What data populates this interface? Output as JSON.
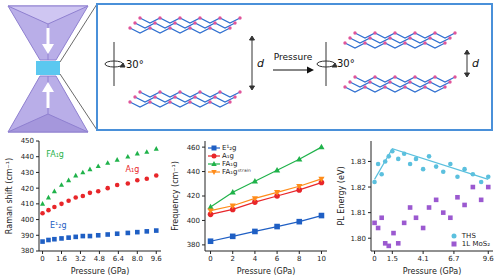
{
  "chart_data": [
    {
      "type": "scatter",
      "x_label": "Pressure (GPa)",
      "y_label": "Raman shift (cm⁻¹)",
      "x": [
        0,
        0.5,
        1.0,
        1.6,
        2.2,
        2.8,
        3.4,
        4.0,
        4.7,
        5.5,
        6.3,
        7.2,
        8.0,
        8.8,
        9.6
      ],
      "series": [
        {
          "name": "E¹₂g",
          "color": "#1f5fc4",
          "marker": "square",
          "values": [
            386,
            387,
            387.5,
            388,
            388.5,
            389,
            389.5,
            389.5,
            390,
            390.5,
            391,
            391.5,
            392,
            392.5,
            393
          ]
        },
        {
          "name": "A₁g",
          "color": "#e8262a",
          "marker": "circle",
          "values": [
            404,
            406,
            408,
            410,
            412,
            414,
            415,
            417,
            418,
            420,
            422,
            423,
            425,
            426,
            428
          ]
        },
        {
          "name": "FA₁g",
          "color": "#1fb24a",
          "marker": "triangle",
          "values": [
            410,
            414,
            418,
            422,
            425,
            428,
            430,
            432,
            434,
            436,
            438,
            440,
            442,
            443,
            445
          ]
        }
      ],
      "xlim": [
        -0.3,
        10
      ],
      "xticks": [
        0,
        1.6,
        3.2,
        4.8,
        6.4,
        {
          "value": 8,
          "label": "8.0"
        },
        9.6
      ],
      "ylim": [
        380,
        450
      ],
      "yticks": [
        380,
        390,
        400,
        410,
        420,
        430,
        440,
        450
      ],
      "grid": false
    },
    {
      "type": "line",
      "x_label": "Pressure (GPa)",
      "y_label": "Frequency (cm⁻¹)",
      "x": [
        0,
        2,
        4,
        6,
        8,
        10
      ],
      "series": [
        {
          "name": "E¹₂g",
          "color": "#1f5fc4",
          "marker": "square",
          "values": [
            383,
            387,
            391,
            395,
            399,
            404
          ]
        },
        {
          "name": "A₁g",
          "color": "#e8262a",
          "marker": "circle",
          "values": [
            405,
            409,
            415,
            420,
            425,
            431
          ]
        },
        {
          "name": "FA₁g",
          "color": "#1fb24a",
          "marker": "triangle",
          "values": [
            411,
            423,
            432,
            441,
            450,
            460
          ]
        },
        {
          "name": "FA₁gˢᵗʳᵃⁱⁿ",
          "color": "#ff8c1a",
          "marker": "triangle-down",
          "values": [
            408,
            412,
            418,
            423,
            428,
            434
          ]
        }
      ],
      "xlim": [
        -0.5,
        10.5
      ],
      "xticks": [
        0,
        2,
        4,
        6,
        8,
        10
      ],
      "ylim": [
        375,
        465
      ],
      "yticks": [
        380,
        400,
        420,
        440,
        460
      ],
      "grid": false,
      "legend": "upper left"
    },
    {
      "type": "scatter",
      "x_label": "Pressure (GPa)",
      "y_label": "PL Energy (eV)",
      "series": [
        {
          "name": "THS",
          "color": "#5bc0de",
          "marker": "circle",
          "x": [
            0,
            0.3,
            0.6,
            0.9,
            1.2,
            1.5,
            2.0,
            2.5,
            3.0,
            3.5,
            4.1,
            4.6,
            5.2,
            5.8,
            6.4,
            7.0,
            7.6,
            8.3,
            9.0,
            9.6
          ],
          "values": [
            1.822,
            1.829,
            1.825,
            1.83,
            1.832,
            1.834,
            1.831,
            1.833,
            1.829,
            1.831,
            1.827,
            1.832,
            1.828,
            1.826,
            1.829,
            1.824,
            1.827,
            1.825,
            1.822,
            1.824
          ]
        },
        {
          "name": "1L MoS₂",
          "color": "#9b59d0",
          "marker": "square",
          "x": [
            0,
            0.3,
            0.6,
            0.9,
            1.2,
            1.6,
            2.0,
            2.5,
            3.0,
            3.5,
            4.1,
            4.6,
            5.2,
            5.8,
            6.4,
            7.0,
            7.6,
            8.3,
            9.0,
            9.6
          ],
          "values": [
            1.806,
            1.804,
            1.808,
            1.798,
            1.797,
            1.802,
            1.798,
            1.806,
            1.812,
            1.808,
            1.804,
            1.812,
            1.815,
            1.81,
            1.808,
            1.816,
            1.813,
            1.82,
            1.815,
            1.82
          ]
        },
        {
          "type": "line",
          "color": "#5bc0de",
          "x": [
            0,
            1.5,
            9.6
          ],
          "values": [
            1.823,
            1.835,
            1.823
          ]
        }
      ],
      "xlim": [
        -0.3,
        10
      ],
      "xticks": [
        0,
        1.5,
        4.1,
        6.7,
        9.6
      ],
      "ylim": [
        1.795,
        1.838
      ],
      "yticks": [
        {
          "value": 1.8,
          "label": "1.80"
        },
        {
          "value": 1.81,
          "label": "1.81"
        },
        {
          "value": 1.82,
          "label": "1.82"
        },
        {
          "value": 1.83,
          "label": "1.83"
        }
      ],
      "grid": false,
      "legend": "lower right"
    }
  ],
  "diagram": {
    "panels": [
      {
        "rotation": "30°",
        "distance": "d"
      },
      {
        "rotation": "30°",
        "distance": "d"
      }
    ],
    "arrow": "Pressure"
  }
}
